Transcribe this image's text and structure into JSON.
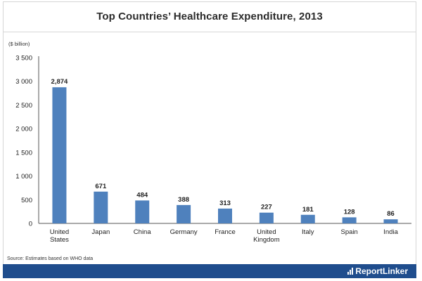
{
  "chart_data": {
    "type": "bar",
    "title": "Top Countries’ Healthcare Expenditure, 2013",
    "ylabel": "($ billion)",
    "xlabel": "",
    "categories": [
      [
        "United",
        "States"
      ],
      [
        "Japan"
      ],
      [
        "China"
      ],
      [
        "Germany"
      ],
      [
        "France"
      ],
      [
        "United",
        "Kingdom"
      ],
      [
        "Italy"
      ],
      [
        "Spain"
      ],
      [
        "India"
      ]
    ],
    "values": [
      2874,
      671,
      484,
      388,
      313,
      227,
      181,
      128,
      86
    ],
    "value_labels": [
      "2,874",
      "671",
      "484",
      "388",
      "313",
      "227",
      "181",
      "128",
      "86"
    ],
    "ylim": [
      0,
      3500
    ],
    "yticks": [
      0,
      500,
      1000,
      1500,
      2000,
      2500,
      3000,
      3500
    ],
    "ytick_labels": [
      "0",
      "500",
      "1 000",
      "1 500",
      "2 000",
      "2 500",
      "3 000",
      "3 500"
    ],
    "grid": false,
    "legend": "none",
    "bar_color": "#4f81bd"
  },
  "source": "Source: Estimates based on WHO data",
  "brand": {
    "name": "ReportLinker",
    "logo_icon": "bar-chart-logo-icon",
    "footer_color": "#1f4d8d"
  }
}
